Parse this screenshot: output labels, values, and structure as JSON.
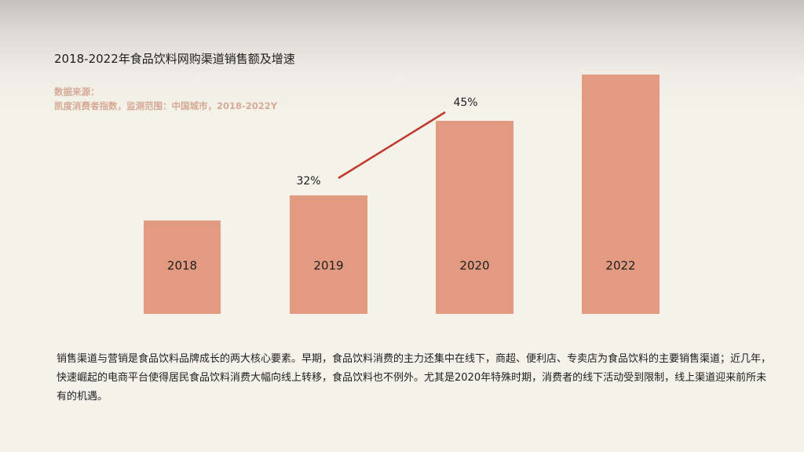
{
  "title": "2018-2022年食品饮料网购渠道销售额及增速",
  "source": {
    "label": "数据来源：",
    "detail": "凯度消费者指数，监测范围：中国城市，2018-2022Y"
  },
  "chart_data": {
    "type": "bar",
    "categories": [
      "2018",
      "2019",
      "2020",
      "2022"
    ],
    "bar_color": "#e29a80",
    "growth_line_color": "#c0392b",
    "growth_labels": [
      {
        "after_category": "2019",
        "label": "32%"
      },
      {
        "after_category": "2020",
        "label": "45%"
      }
    ]
  },
  "description": "销售渠道与营销是食品饮料品牌成长的两大核心要素。早期，食品饮料消费的主力还集中在线下，商超、便利店、专卖店为食品饮料的主要销售渠道；近几年，快速崛起的电商平台使得居民食品饮料消费大幅向线上转移，食品饮料也不例外。尤其是2020年特殊时期，消费者的线下活动受到限制，线上渠道迎来前所未有的机遇。"
}
